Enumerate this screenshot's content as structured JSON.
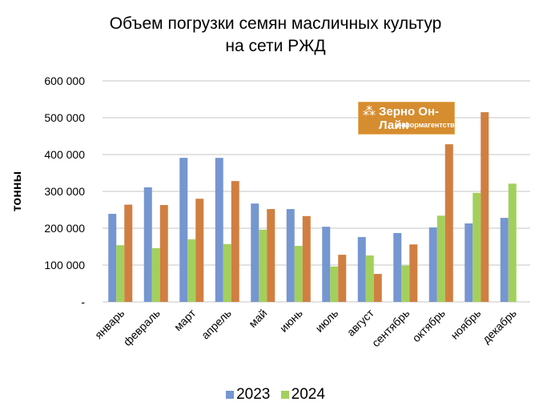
{
  "chart_data": {
    "type": "bar",
    "title": "Объем погрузки семян масличных культур на сети РЖД",
    "title_lines": [
      "Объем погрузки семян масличных культур",
      "на сети РЖД"
    ],
    "ylabel": "тонны",
    "xlabel": "",
    "ylim": [
      0,
      600000
    ],
    "yticks": [
      0,
      100000,
      200000,
      300000,
      400000,
      500000,
      600000
    ],
    "ytick_labels": [
      "-",
      "100 000",
      "200 000",
      "300 000",
      "400 000",
      "500 000",
      "600 000"
    ],
    "grid": true,
    "legend_position": "bottom",
    "categories": [
      "январь",
      "февраль",
      "март",
      "апрель",
      "май",
      "июнь",
      "июль",
      "август",
      "сентябрь",
      "октябрь",
      "ноябрь",
      "декабрь"
    ],
    "series": [
      {
        "name": "2023",
        "color": "#7596d0",
        "values": [
          239000,
          311000,
          391000,
          391000,
          267000,
          252000,
          204000,
          176000,
          187000,
          202000,
          213000,
          228000
        ],
        "in_legend": true
      },
      {
        "name": "2024",
        "color": "#a3d05c",
        "values": [
          154000,
          146000,
          170000,
          157000,
          196000,
          152000,
          96000,
          126000,
          99000,
          234000,
          296000,
          321000
        ],
        "in_legend": true
      },
      {
        "name": "",
        "color": "#d07f41",
        "values": [
          264000,
          263000,
          280000,
          328000,
          252000,
          233000,
          128000,
          76000,
          156000,
          428000,
          515000,
          null
        ],
        "in_legend": false
      }
    ]
  },
  "logo": {
    "title": "Зерно Он-Лайн",
    "subtitle": "информагентство"
  }
}
